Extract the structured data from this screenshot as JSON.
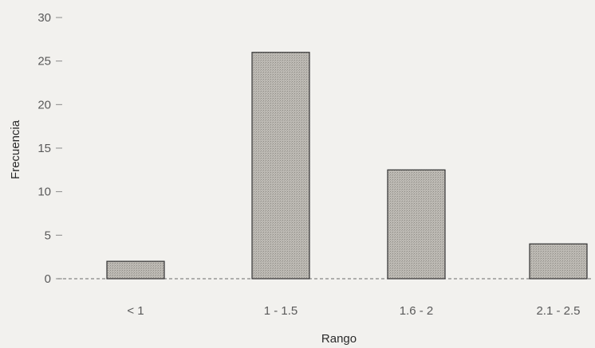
{
  "chart_data": {
    "type": "bar",
    "title": "",
    "xlabel": "Rango",
    "ylabel": "Frecuencia",
    "categories": [
      "< 1",
      "1 - 1.5",
      "1.6 - 2",
      "2.1 - 2.5"
    ],
    "values": [
      2,
      26,
      12.5,
      4
    ],
    "ylim": [
      0,
      30
    ],
    "yticks": [
      0,
      5,
      10,
      15,
      20,
      25,
      30
    ],
    "grid": false,
    "legend": "none",
    "bar_color": "#b9b6b0",
    "bar_edge_color": "#333333"
  }
}
